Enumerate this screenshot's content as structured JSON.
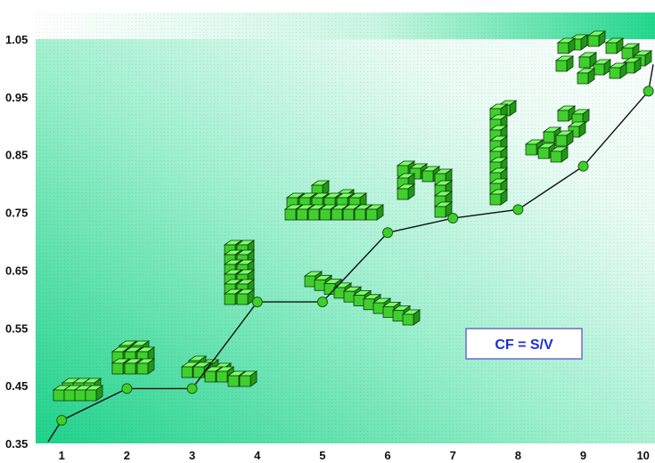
{
  "chart_data": {
    "type": "line",
    "title": "",
    "xlabel": "",
    "ylabel": "",
    "x": [
      1,
      2,
      3,
      4,
      5,
      6,
      7,
      8,
      9,
      10
    ],
    "series": [
      {
        "values": [
          0.39,
          0.445,
          0.445,
          0.595,
          0.595,
          0.715,
          0.74,
          0.755,
          0.83,
          0.96
        ]
      }
    ],
    "xlim": [
      0.6,
      10.1
    ],
    "ylim": [
      0.35,
      1.05
    ],
    "y_ticks": [
      "0.35",
      "0.45",
      "0.55",
      "0.65",
      "0.75",
      "0.85",
      "0.95",
      "1.05"
    ],
    "x_ticks": [
      "1",
      "2",
      "3",
      "4",
      "5",
      "6",
      "7",
      "8",
      "9",
      "10"
    ],
    "grid": false,
    "annotation": "CF = S/V",
    "colors": {
      "line": "#111111",
      "marker": "#3fcf2a",
      "cube_light": "#7dff6c",
      "cube_mid": "#40d02e",
      "cube_dark": "#229618",
      "background_green": "#27d98f",
      "annotation_text": "#1c2fd6",
      "annotation_border": "#6a6ad0"
    },
    "shape_icons": [
      "disc-of-cubes-icon",
      "cube-block-icon",
      "stepped-cubes-icon",
      "tall-cube-column-icon",
      "cube-cluster-icon",
      "long-cube-rod-icon",
      "arch-of-cubes-icon",
      "single-cube-column-icon",
      "staircase-cubes-icon",
      "scattered-cubes-icon"
    ]
  }
}
